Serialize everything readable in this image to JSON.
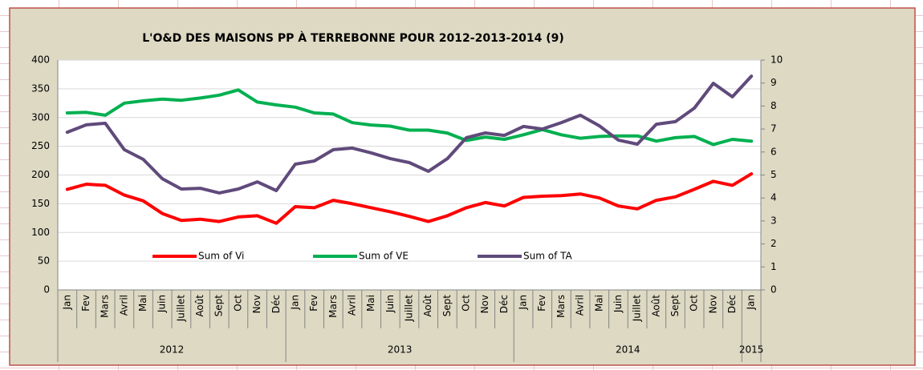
{
  "chart_data": {
    "type": "line",
    "title": "L'O&D DES MAISONS  PP À TERREBONNE POUR 2012-2013-2014 (9)",
    "categories": [
      "Jan",
      "Fev",
      "Mars",
      "Avril",
      "Mai",
      "Juin",
      "Juillet",
      "Août",
      "Sept",
      "Oct",
      "Nov",
      "Déc",
      "Jan",
      "Fev",
      "Mars",
      "Avril",
      "Mai",
      "Juin",
      "Juillet",
      "Août",
      "Sept",
      "Oct",
      "Nov",
      "Déc",
      "Jan",
      "Fev",
      "Mars",
      "Avril",
      "Mai",
      "Juin",
      "Juillet",
      "Août",
      "Sept",
      "Oct",
      "Nov",
      "Déc",
      "Jan"
    ],
    "years": [
      "2012",
      "2013",
      "2014",
      "2015"
    ],
    "series": [
      {
        "name": "Sum of Vi",
        "color": "#ff0000",
        "values": [
          175,
          184,
          182,
          165,
          155,
          133,
          121,
          123,
          119,
          127,
          129,
          116,
          145,
          143,
          156,
          150,
          143,
          136,
          128,
          119,
          129,
          143,
          152,
          146,
          161,
          163,
          164,
          167,
          160,
          146,
          141,
          156,
          162,
          175,
          189,
          182,
          202
        ]
      },
      {
        "name": "Sum of VE",
        "color": "#00b050",
        "values": [
          308,
          309,
          304,
          325,
          329,
          332,
          330,
          334,
          339,
          348,
          327,
          322,
          318,
          308,
          306,
          291,
          287,
          285,
          278,
          278,
          273,
          260,
          266,
          262,
          270,
          279,
          270,
          264,
          267,
          268,
          268,
          259,
          265,
          267,
          253,
          262,
          259
        ]
      },
      {
        "name": "Sum of TA",
        "color": "#604a7b",
        "axis": "y2",
        "values": [
          6.86,
          7.18,
          7.25,
          6.1,
          5.68,
          4.84,
          4.39,
          4.42,
          4.22,
          4.39,
          4.7,
          4.32,
          5.47,
          5.61,
          6.1,
          6.17,
          5.96,
          5.71,
          5.54,
          5.16,
          5.71,
          6.62,
          6.83,
          6.72,
          7.11,
          7.0,
          7.28,
          7.6,
          7.14,
          6.52,
          6.34,
          7.21,
          7.32,
          7.91,
          8.99,
          8.4,
          9.3
        ]
      }
    ],
    "ylim": [
      0,
      400
    ],
    "yticks": [
      0,
      50,
      100,
      150,
      200,
      250,
      300,
      350,
      400
    ],
    "y2lim": [
      0,
      10
    ],
    "y2ticks": [
      0,
      1,
      2,
      3,
      4,
      5,
      6,
      7,
      8,
      9,
      10
    ],
    "grid": true,
    "legend": "bottom"
  }
}
